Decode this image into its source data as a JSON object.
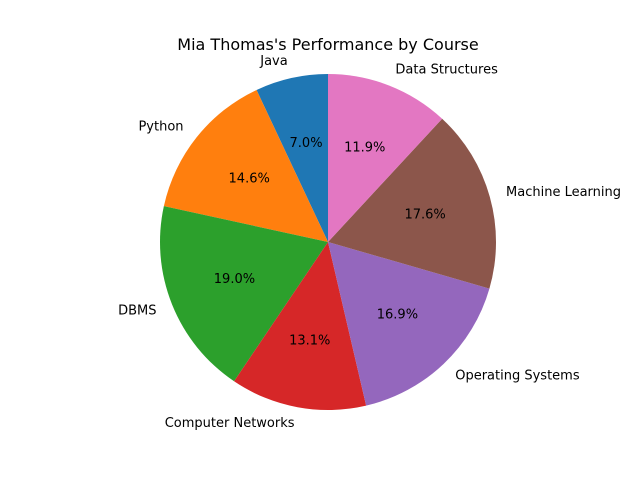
{
  "chart_data": {
    "type": "pie",
    "title": "Mia Thomas's Performance by Course",
    "slices": [
      {
        "label": "Java",
        "value": 7.0,
        "pct_label": "7.0%",
        "color": "#1f77b4"
      },
      {
        "label": "Python",
        "value": 14.6,
        "pct_label": "14.6%",
        "color": "#ff7f0e"
      },
      {
        "label": "DBMS",
        "value": 19.0,
        "pct_label": "19.0%",
        "color": "#2ca02c"
      },
      {
        "label": "Computer Networks",
        "value": 13.1,
        "pct_label": "13.1%",
        "color": "#d62728"
      },
      {
        "label": "Operating Systems",
        "value": 16.9,
        "pct_label": "16.9%",
        "color": "#9467bd"
      },
      {
        "label": "Machine Learning",
        "value": 17.6,
        "pct_label": "17.6%",
        "color": "#8c564b"
      },
      {
        "label": "Data Structures",
        "value": 11.9,
        "pct_label": "11.9%",
        "color": "#e377c2"
      }
    ],
    "start_angle": 90,
    "direction": "counterclockwise"
  }
}
